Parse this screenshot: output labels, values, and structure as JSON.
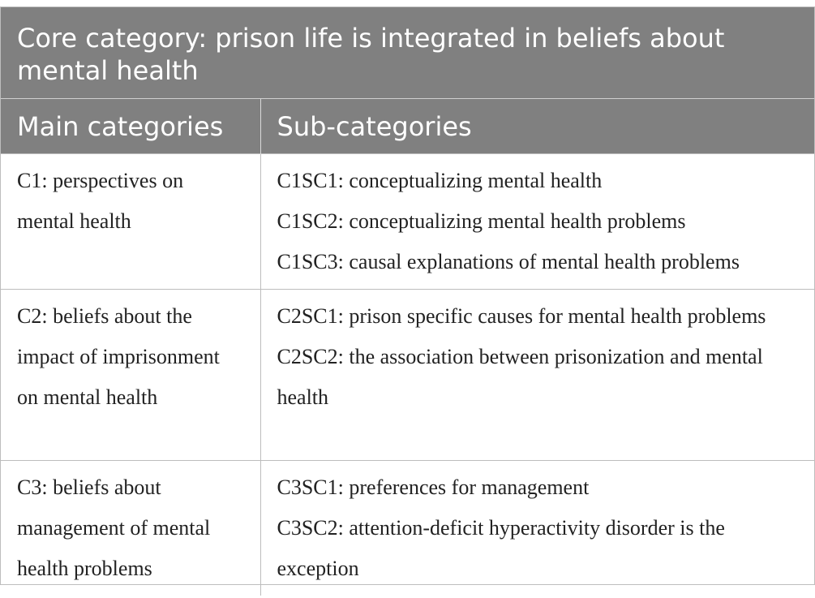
{
  "table": {
    "core_category": "Core category: prison life is integrated in beliefs about mental health",
    "headers": {
      "main": "Main categories",
      "sub": "Sub-categories"
    },
    "rows": [
      {
        "main": "C1: perspectives on mental health",
        "subs": [
          "C1SC1: conceptualizing mental health",
          "C1SC2: conceptualizing mental health problems",
          "C1SC3: causal explanations of mental health problems"
        ]
      },
      {
        "main": "C2: beliefs about the impact of imprisonment on mental health",
        "subs": [
          "C2SC1: prison specific causes for mental health problems",
          "C2SC2: the association between prisonization and mental health"
        ]
      },
      {
        "main": "C3: beliefs about management of mental health problems",
        "subs": [
          "C3SC1: preferences for management",
          "C3SC2: attention-deficit hyperactivity disorder is the exception"
        ]
      }
    ]
  },
  "colors": {
    "header_bg": "#808080",
    "header_text": "#ffffff",
    "border": "#bdbdbd",
    "body_text": "#222222"
  }
}
